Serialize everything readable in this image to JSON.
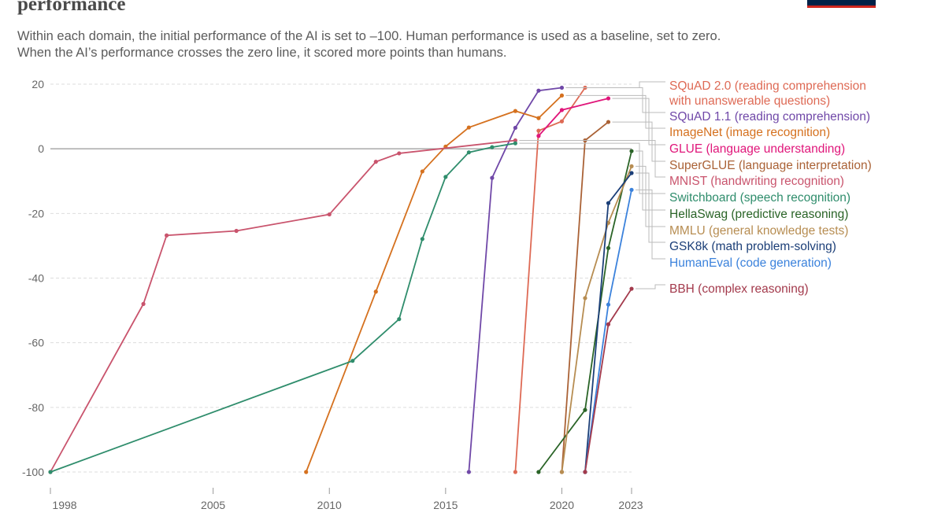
{
  "header": {
    "title": "performance",
    "subtitle_lines": [
      "Within each domain, the initial performance of the AI is set to –100. Human performance is used as a baseline, set to zero.",
      "When the AI’s performance crosses the zero line, it scored more points than humans."
    ]
  },
  "chart_data": {
    "type": "line",
    "xlim": [
      1998,
      2023
    ],
    "ylim": [
      -100,
      20
    ],
    "x_ticks": [
      "1998",
      "2005",
      "2010",
      "2015",
      "2020",
      "2023"
    ],
    "y_ticks": [
      "20",
      "0",
      "-20",
      "-40",
      "-60",
      "-80",
      "-100"
    ],
    "grid": "horizontal dashed",
    "legend": "right, labels at line ends",
    "series": [
      {
        "name": "SQuAD 2.0 (reading comprehension with unanswerable questions)",
        "label_lines": [
          "SQuAD 2.0 (reading comprehension",
          "with unanswerable questions)"
        ],
        "color": "#de6a55",
        "points": [
          [
            2018,
            -100
          ],
          [
            2019,
            5.6
          ],
          [
            2020,
            8.5
          ],
          [
            2021,
            18.9
          ]
        ]
      },
      {
        "name": "SQuAD 1.1 (reading comprehension)",
        "label_lines": [
          "SQuAD 1.1 (reading comprehension)"
        ],
        "color": "#7048a8",
        "points": [
          [
            2016,
            -100
          ],
          [
            2017,
            -9
          ],
          [
            2018,
            6.5
          ],
          [
            2019,
            18
          ],
          [
            2020,
            18.9
          ]
        ]
      },
      {
        "name": "ImageNet (image recognition)",
        "label_lines": [
          "ImageNet (image recognition)"
        ],
        "color": "#d5711f",
        "points": [
          [
            2009,
            -100
          ],
          [
            2012,
            -44.2
          ],
          [
            2014,
            -7
          ],
          [
            2015,
            0.7
          ],
          [
            2016,
            6.6
          ],
          [
            2018,
            11.7
          ],
          [
            2019,
            9.5
          ],
          [
            2020,
            16.5
          ]
        ]
      },
      {
        "name": "GLUE (language understanding)",
        "label_lines": [
          "GLUE (language understanding)"
        ],
        "color": "#e0167a",
        "points": [
          [
            2019,
            4
          ],
          [
            2020,
            12
          ],
          [
            2022,
            15.6
          ]
        ]
      },
      {
        "name": "SuperGLUE (language interpretation)",
        "label_lines": [
          "SuperGLUE (language interpretation)"
        ],
        "color": "#aa6236",
        "points": [
          [
            2020,
            -100
          ],
          [
            2021,
            2.6
          ],
          [
            2022,
            8.3
          ]
        ]
      },
      {
        "name": "MNIST (handwriting recognition)",
        "label_lines": [
          "MNIST (handwriting recognition)"
        ],
        "color": "#c9546d",
        "points": [
          [
            1998,
            -100
          ],
          [
            2002,
            -48
          ],
          [
            2003,
            -26.8
          ],
          [
            2006,
            -25.4
          ],
          [
            2010,
            -20.3
          ],
          [
            2012,
            -4
          ],
          [
            2013,
            -1.4
          ],
          [
            2018,
            2.6
          ]
        ]
      },
      {
        "name": "Switchboard (speech recognition)",
        "label_lines": [
          "Switchboard (speech recognition)"
        ],
        "color": "#2f8d6c",
        "points": [
          [
            1998,
            -100
          ],
          [
            2011,
            -65.6
          ],
          [
            2013,
            -52.7
          ],
          [
            2014,
            -27.9
          ],
          [
            2015,
            -8.7
          ],
          [
            2016,
            -1.1
          ],
          [
            2017,
            0.5
          ],
          [
            2018,
            1.7
          ]
        ]
      },
      {
        "name": "HellaSwag (predictive reasoning)",
        "label_lines": [
          "HellaSwag (predictive reasoning)"
        ],
        "color": "#2a6427",
        "points": [
          [
            2019,
            -100
          ],
          [
            2021,
            -80.8
          ],
          [
            2022,
            -30.7
          ],
          [
            2023,
            -0.7
          ]
        ]
      },
      {
        "name": "MMLU (general knowledge tests)",
        "label_lines": [
          "MMLU (general knowledge tests)"
        ],
        "color": "#b78d52",
        "points": [
          [
            2020,
            -100
          ],
          [
            2021,
            -46.2
          ],
          [
            2022,
            -22.9
          ],
          [
            2023,
            -5.4
          ]
        ]
      },
      {
        "name": "GSK8k (math problem-solving)",
        "label_lines": [
          "GSK8k (math problem-solving)"
        ],
        "color": "#1c3f78",
        "points": [
          [
            2021,
            -100
          ],
          [
            2022,
            -16.8
          ],
          [
            2023,
            -7.5
          ]
        ]
      },
      {
        "name": "HumanEval (code generation)",
        "label_lines": [
          "HumanEval (code generation)"
        ],
        "color": "#3b82dc",
        "points": [
          [
            2021,
            -100
          ],
          [
            2022,
            -48.2
          ],
          [
            2023,
            -12.7
          ]
        ]
      },
      {
        "name": "BBH (complex reasoning)",
        "label_lines": [
          "BBH (complex reasoning)"
        ],
        "color": "#a33a4c",
        "points": [
          [
            2021,
            -100
          ],
          [
            2022,
            -54.3
          ],
          [
            2023,
            -43.3
          ]
        ]
      }
    ]
  }
}
